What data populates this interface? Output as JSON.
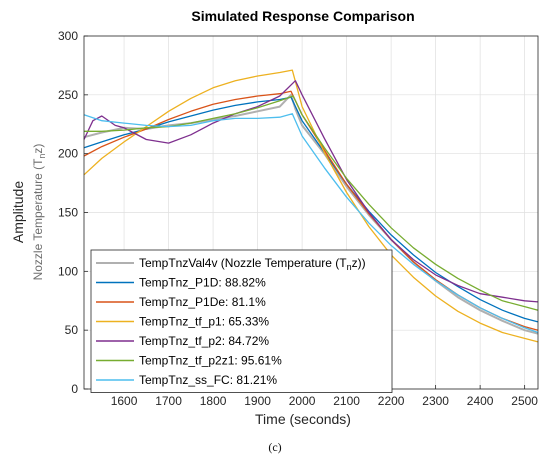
{
  "chart_data": {
    "type": "line",
    "title": "Simulated Response Comparison",
    "xlabel": "Time (seconds)",
    "ylabel": "Amplitude",
    "ysublabel_prefix": "Nozzle Temperature (T",
    "ysublabel_sub": "n",
    "ysublabel_suffix": "z)",
    "xlim": [
      1510,
      2530
    ],
    "ylim": [
      0,
      300
    ],
    "xticks": [
      1600,
      1700,
      1800,
      1900,
      2000,
      2100,
      2200,
      2300,
      2400,
      2500
    ],
    "yticks": [
      0,
      50,
      100,
      150,
      200,
      250,
      300
    ],
    "grid": true,
    "legend_position": "bottom-left",
    "series": [
      {
        "name": "TempTnzVal4v (Nozzle Temperature (Tnz))",
        "label_prefix": "TempTnzVal4v (Nozzle Temperature (T",
        "label_sub": "n",
        "label_suffix": "z))",
        "color": "#b0b0b0",
        "x": [
          1510,
          1550,
          1600,
          1650,
          1700,
          1750,
          1800,
          1850,
          1900,
          1950,
          1975,
          1985,
          2000,
          2050,
          2100,
          2150,
          2200,
          2250,
          2300,
          2350,
          2400,
          2450,
          2500,
          2530
        ],
        "y": [
          214,
          218,
          222,
          221,
          224,
          226,
          229,
          232,
          236,
          240,
          250,
          238,
          224,
          200,
          172,
          148,
          127,
          108,
          92,
          78,
          67,
          58,
          50,
          47
        ]
      },
      {
        "name": "TempTnz_P1D: 88.82%",
        "color": "#0072bd",
        "x": [
          1510,
          1550,
          1600,
          1650,
          1700,
          1750,
          1800,
          1850,
          1900,
          1950,
          1975,
          2000,
          2050,
          2100,
          2150,
          2200,
          2250,
          2300,
          2350,
          2400,
          2450,
          2500,
          2530
        ],
        "y": [
          205,
          210,
          216,
          221,
          227,
          232,
          237,
          241,
          244,
          246,
          248,
          228,
          201,
          174,
          151,
          131,
          114,
          99,
          87,
          76,
          67,
          60,
          57
        ]
      },
      {
        "name": "TempTnz_P1De: 81.1%",
        "color": "#d95319",
        "x": [
          1510,
          1550,
          1600,
          1650,
          1700,
          1750,
          1800,
          1850,
          1900,
          1950,
          1975,
          2000,
          2050,
          2100,
          2150,
          2200,
          2250,
          2300,
          2350,
          2400,
          2450,
          2500,
          2530
        ],
        "y": [
          198,
          206,
          214,
          221,
          229,
          236,
          242,
          246,
          249,
          251,
          253,
          233,
          203,
          174,
          149,
          127,
          108,
          93,
          80,
          69,
          60,
          53,
          50
        ]
      },
      {
        "name": "TempTnz_tf_p1: 65.33%",
        "color": "#edb120",
        "x": [
          1510,
          1550,
          1600,
          1650,
          1700,
          1750,
          1800,
          1850,
          1900,
          1950,
          1978,
          2000,
          2050,
          2100,
          2150,
          2200,
          2250,
          2300,
          2350,
          2400,
          2450,
          2500,
          2530
        ],
        "y": [
          182,
          196,
          210,
          223,
          236,
          247,
          256,
          262,
          266,
          269,
          271,
          240,
          201,
          167,
          138,
          114,
          95,
          79,
          66,
          56,
          48,
          43,
          40
        ]
      },
      {
        "name": "TempTnz_tf_p2: 84.72%",
        "color": "#7e2f8e",
        "x": [
          1510,
          1530,
          1550,
          1580,
          1600,
          1650,
          1700,
          1750,
          1800,
          1850,
          1900,
          1950,
          1985,
          2000,
          2050,
          2100,
          2150,
          2200,
          2250,
          2300,
          2350,
          2400,
          2450,
          2500,
          2530
        ],
        "y": [
          212,
          228,
          232,
          224,
          222,
          212,
          209,
          216,
          226,
          234,
          240,
          249,
          262,
          250,
          213,
          178,
          150,
          127,
          110,
          97,
          88,
          81,
          78,
          75,
          74
        ]
      },
      {
        "name": "TempTnz_tf_p2z1: 95.61%",
        "color": "#77ac30",
        "x": [
          1510,
          1550,
          1600,
          1650,
          1700,
          1750,
          1800,
          1850,
          1900,
          1950,
          1980,
          2000,
          2050,
          2100,
          2150,
          2200,
          2250,
          2300,
          2350,
          2400,
          2450,
          2500,
          2530
        ],
        "y": [
          219,
          219,
          220,
          222,
          223,
          226,
          230,
          234,
          239,
          245,
          249,
          233,
          205,
          179,
          157,
          137,
          120,
          106,
          94,
          84,
          75,
          70,
          67
        ]
      },
      {
        "name": "TempTnz_ss_FC: 81.21%",
        "color": "#4dbeee",
        "x": [
          1510,
          1550,
          1600,
          1650,
          1700,
          1750,
          1800,
          1850,
          1900,
          1950,
          1978,
          2000,
          2050,
          2100,
          2150,
          2200,
          2250,
          2300,
          2350,
          2400,
          2450,
          2500,
          2530
        ],
        "y": [
          233,
          228,
          226,
          224,
          223,
          224,
          228,
          230,
          230,
          231,
          234,
          215,
          188,
          163,
          141,
          122,
          106,
          92,
          80,
          69,
          60,
          52,
          48
        ]
      }
    ],
    "caption": "(c)"
  }
}
